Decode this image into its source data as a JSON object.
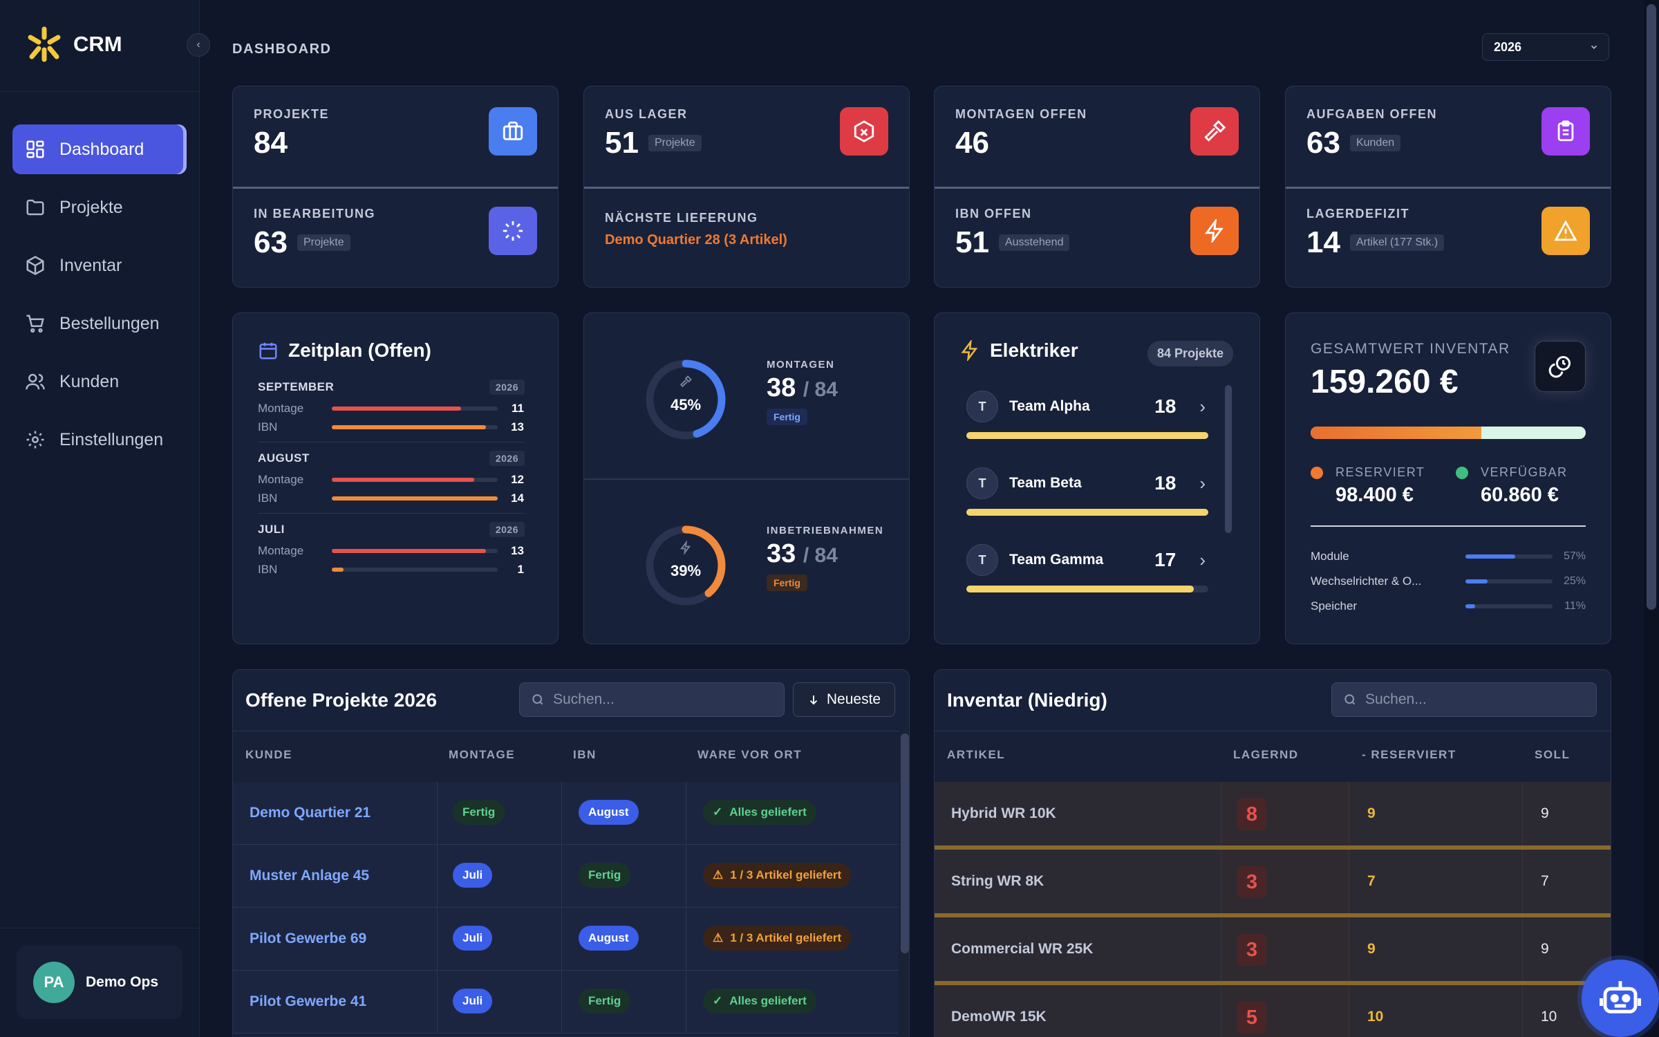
{
  "app": {
    "name": "CRM",
    "collapse_icon": "chevron-left-icon"
  },
  "sidebar": {
    "items": [
      {
        "label": "Dashboard",
        "icon": "grid-icon",
        "active": true
      },
      {
        "label": "Projekte",
        "icon": "folder-icon"
      },
      {
        "label": "Inventar",
        "icon": "box-icon"
      },
      {
        "label": "Bestellungen",
        "icon": "cart-icon"
      },
      {
        "label": "Kunden",
        "icon": "users-icon"
      },
      {
        "label": "Einstellungen",
        "icon": "gear-icon"
      }
    ],
    "user": {
      "initials": "PA",
      "name": "Demo Ops"
    }
  },
  "header": {
    "title": "DASHBOARD",
    "year_select": "2026"
  },
  "stats": {
    "projekte": {
      "label": "PROJEKTE",
      "value": "84",
      "icon": "briefcase-icon",
      "color": "#4a7df0"
    },
    "in_bearbeitung": {
      "label": "IN BEARBEITUNG",
      "value": "63",
      "tag": "Projekte",
      "icon": "loader-icon",
      "color": "#5a63e6"
    },
    "aus_lager": {
      "label": "AUS LAGER",
      "value": "51",
      "tag": "Projekte",
      "icon": "package-x-icon",
      "color": "#df3b45"
    },
    "naechste_lieferung": {
      "label": "NÄCHSTE LIEFERUNG",
      "value": "Demo Quartier 28 (3 Artikel)"
    },
    "montagen_offen": {
      "label": "MONTAGEN OFFEN",
      "value": "46",
      "icon": "hammer-icon",
      "color": "#df3b45"
    },
    "ibn_offen": {
      "label": "IBN OFFEN",
      "value": "51",
      "tag": "Ausstehend",
      "icon": "zap-icon",
      "color": "#ee6a24"
    },
    "aufgaben_offen": {
      "label": "AUFGABEN OFFEN",
      "value": "63",
      "tag": "Kunden",
      "icon": "clipboard-icon",
      "color": "#9b3ff0"
    },
    "lagerdefizit": {
      "label": "LAGERDEFIZIT",
      "value": "14",
      "tag": "Artikel (177 Stk.)",
      "icon": "alert-triangle-icon",
      "color": "#f0a22a"
    }
  },
  "zeitplan": {
    "title": "Zeitplan (Offen)",
    "icon": "calendar-icon",
    "months": [
      {
        "name": "SEPTEMBER",
        "year": "2026",
        "rows": [
          {
            "label": "Montage",
            "value": 11,
            "fill": 0.78,
            "color": "#e5534b"
          },
          {
            "label": "IBN",
            "value": 13,
            "fill": 0.93,
            "color": "#f08a3c"
          }
        ]
      },
      {
        "name": "AUGUST",
        "year": "2026",
        "rows": [
          {
            "label": "Montage",
            "value": 12,
            "fill": 0.86,
            "color": "#e5534b"
          },
          {
            "label": "IBN",
            "value": 14,
            "fill": 1.0,
            "color": "#f08a3c"
          }
        ]
      },
      {
        "name": "JULI",
        "year": "2026",
        "rows": [
          {
            "label": "Montage",
            "value": 13,
            "fill": 0.93,
            "color": "#e5534b"
          },
          {
            "label": "IBN",
            "value": 1,
            "fill": 0.07,
            "color": "#f08a3c"
          }
        ]
      }
    ]
  },
  "progress": {
    "montagen": {
      "percent": 45,
      "percent_text": "45%",
      "label": "MONTAGEN",
      "value": "38",
      "total": "/ 84",
      "status": "Fertig",
      "color": "#4a7df0",
      "icon": "hammer-icon"
    },
    "inbetriebnahmen": {
      "percent": 39,
      "percent_text": "39%",
      "label": "INBETRIEBNAHMEN",
      "value": "33",
      "total": "/ 84",
      "status": "Fertig",
      "color": "#f08a3c",
      "icon": "zap-icon"
    }
  },
  "elektriker": {
    "title": "Elektriker",
    "badge": "84 Projekte",
    "icon": "zap-icon",
    "teams": [
      {
        "initial": "T",
        "name": "Team Alpha",
        "count": "18",
        "fill": 1.0
      },
      {
        "initial": "T",
        "name": "Team Beta",
        "count": "18",
        "fill": 1.0
      },
      {
        "initial": "T",
        "name": "Team Gamma",
        "count": "17",
        "fill": 0.94
      }
    ]
  },
  "inventarwert": {
    "label": "GESAMTWERT INVENTAR",
    "value": "159.260 €",
    "icon": "coins-icon",
    "reserved_fraction": 0.62,
    "reserviert": {
      "label": "RESERVIERT",
      "value": "98.400 €",
      "color": "#f07a30"
    },
    "verfuegbar": {
      "label": "VERFÜGBAR",
      "value": "60.860 €",
      "color": "#3fbf7f"
    },
    "categories": [
      {
        "name": "Module",
        "percent": "57%",
        "fill": 0.57
      },
      {
        "name": "Wechselrichter & O...",
        "percent": "25%",
        "fill": 0.25
      },
      {
        "name": "Speicher",
        "percent": "11%",
        "fill": 0.11
      }
    ]
  },
  "projects_table": {
    "title": "Offene Projekte 2026",
    "search_placeholder": "Suchen...",
    "sort_label": "Neueste",
    "headers": [
      "KUNDE",
      "MONTAGE",
      "IBN",
      "WARE VOR ORT"
    ],
    "rows": [
      {
        "kunde": "Demo Quartier 21",
        "montage": "Fertig",
        "ibn": "August",
        "ware": "Alles geliefert",
        "ware_ok": true
      },
      {
        "kunde": "Muster Anlage 45",
        "montage": "Juli",
        "ibn": "Fertig",
        "ware": "1 / 3 Artikel geliefert",
        "ware_ok": false
      },
      {
        "kunde": "Pilot Gewerbe 69",
        "montage": "Juli",
        "ibn": "August",
        "ware": "1 / 3 Artikel geliefert",
        "ware_ok": false
      },
      {
        "kunde": "Pilot Gewerbe 41",
        "montage": "Juli",
        "ibn": "Fertig",
        "ware": "Alles geliefert",
        "ware_ok": true
      }
    ]
  },
  "inventory_table": {
    "title": "Inventar (Niedrig)",
    "search_placeholder": "Suchen...",
    "headers": [
      "ARTIKEL",
      "LAGERND",
      "- RESERVIERT",
      "SOLL"
    ],
    "rows": [
      {
        "artikel": "Hybrid WR 10K",
        "lagernd": "8",
        "reserviert": "9",
        "soll": "9"
      },
      {
        "artikel": "String WR 8K",
        "lagernd": "3",
        "reserviert": "7",
        "soll": "7"
      },
      {
        "artikel": "Commercial WR 25K",
        "lagernd": "3",
        "reserviert": "9",
        "soll": "9"
      },
      {
        "artikel": "DemoWR 15K",
        "lagernd": "5",
        "reserviert": "10",
        "soll": "10"
      }
    ]
  },
  "assistant": {
    "icon": "robot-icon"
  }
}
